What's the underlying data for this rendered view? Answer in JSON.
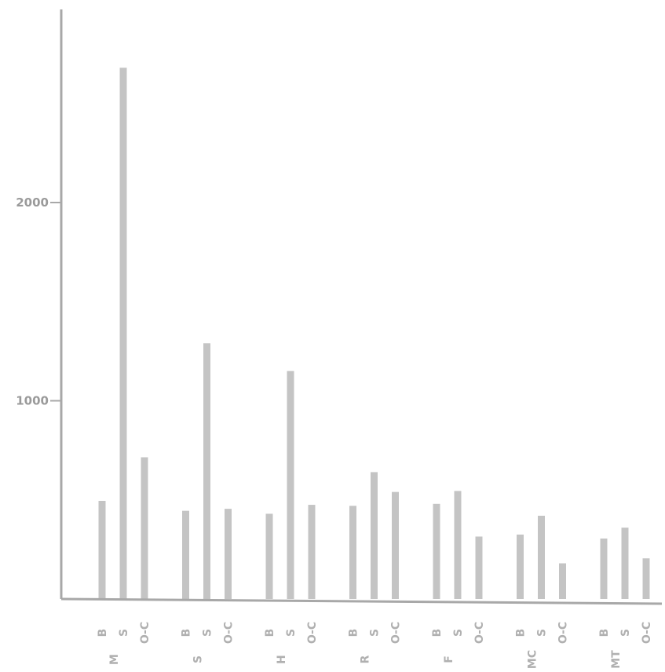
{
  "chart_data": {
    "type": "bar",
    "title": "",
    "xlabel": "",
    "ylabel": "",
    "ylim": [
      0,
      2850
    ],
    "y_ticks": [
      1000,
      2000
    ],
    "grid": false,
    "colors": {
      "bar": "#c4c4c4",
      "axis": "#a8a8a8",
      "text": "#9a9a9a"
    },
    "groups": [
      {
        "label": "M",
        "bars": [
          {
            "category": "B",
            "value": 495
          },
          {
            "category": "S",
            "value": 2680
          },
          {
            "category": "O-C",
            "value": 715
          }
        ]
      },
      {
        "label": "S",
        "bars": [
          {
            "category": "B",
            "value": 445
          },
          {
            "category": "S",
            "value": 1290
          },
          {
            "category": "O-C",
            "value": 455
          }
        ]
      },
      {
        "label": "H",
        "bars": [
          {
            "category": "B",
            "value": 430
          },
          {
            "category": "S",
            "value": 1150
          },
          {
            "category": "O-C",
            "value": 475
          }
        ]
      },
      {
        "label": "R",
        "bars": [
          {
            "category": "B",
            "value": 470
          },
          {
            "category": "S",
            "value": 640
          },
          {
            "category": "O-C",
            "value": 540
          }
        ]
      },
      {
        "label": "F",
        "bars": [
          {
            "category": "B",
            "value": 480
          },
          {
            "category": "S",
            "value": 545
          },
          {
            "category": "O-C",
            "value": 315
          }
        ]
      },
      {
        "label": "MC",
        "bars": [
          {
            "category": "B",
            "value": 325
          },
          {
            "category": "S",
            "value": 420
          },
          {
            "category": "O-C",
            "value": 180
          }
        ]
      },
      {
        "label": "MT",
        "bars": [
          {
            "category": "B",
            "value": 305
          },
          {
            "category": "S",
            "value": 360
          },
          {
            "category": "O-C",
            "value": 205
          }
        ]
      }
    ]
  }
}
